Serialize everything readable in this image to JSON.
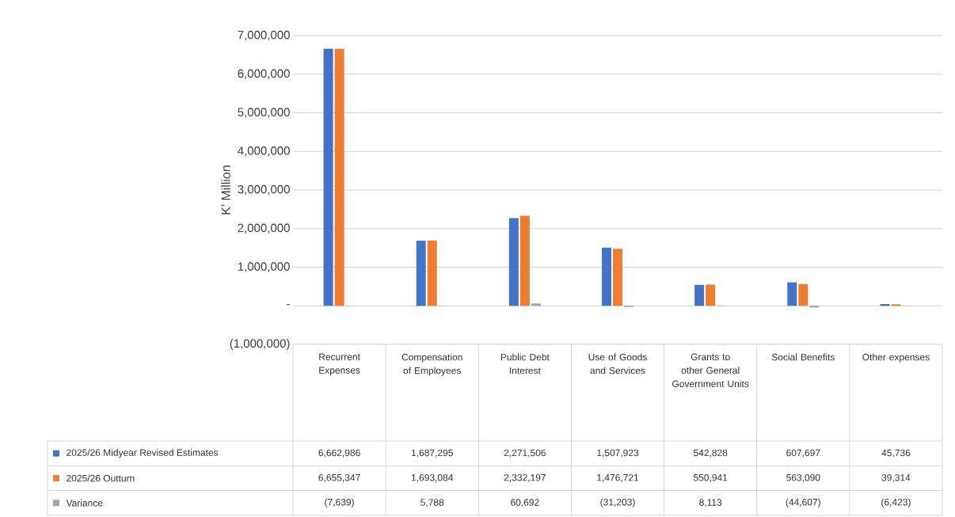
{
  "chart_data": {
    "type": "bar",
    "ylabel": "K' Million",
    "categories": [
      "Recurrent Expenses",
      "Compensation of Employees",
      "Public Debt Interest",
      "Use of Goods and Services",
      "Grants to other General Government Units",
      "Social Benefits",
      "Other expenses"
    ],
    "series": [
      {
        "name": "2025/26 Midyear Revised Estimates",
        "color": "#4472c4",
        "values": [
          6662986,
          1687295,
          2271506,
          1507923,
          542828,
          607697,
          45736
        ],
        "value_labels": [
          "6,662,986",
          "1,687,295",
          "2,271,506",
          "1,507,923",
          "542,828",
          "607,697",
          "45,736"
        ]
      },
      {
        "name": "2025/26 Outturn",
        "color": "#ed7d31",
        "values": [
          6655347,
          1693084,
          2332197,
          1476721,
          550941,
          563090,
          39314
        ],
        "value_labels": [
          "6,655,347",
          "1,693,084",
          "2,332,197",
          "1,476,721",
          "550,941",
          "563,090",
          "39,314"
        ]
      },
      {
        "name": "Variance",
        "color": "#a5a5a5",
        "values": [
          -7639,
          5788,
          60692,
          -31203,
          8113,
          -44607,
          -6423
        ],
        "value_labels": [
          "(7,639)",
          "5,788",
          "60,692",
          "(31,203)",
          "8,113",
          "(44,607)",
          "(6,423)"
        ]
      }
    ],
    "ylim": [
      -1000000,
      7000000
    ],
    "yticks": [
      {
        "value": -1000000,
        "label": "(1,000,000)"
      },
      {
        "value": 0,
        "label": "-"
      },
      {
        "value": 1000000,
        "label": "1,000,000"
      },
      {
        "value": 2000000,
        "label": "2,000,000"
      },
      {
        "value": 3000000,
        "label": "3,000,000"
      },
      {
        "value": 4000000,
        "label": "4,000,000"
      },
      {
        "value": 5000000,
        "label": "5,000,000"
      },
      {
        "value": 6000000,
        "label": "6,000,000"
      },
      {
        "value": 7000000,
        "label": "7,000,000"
      }
    ],
    "grid": "y",
    "legend": "bottom"
  }
}
